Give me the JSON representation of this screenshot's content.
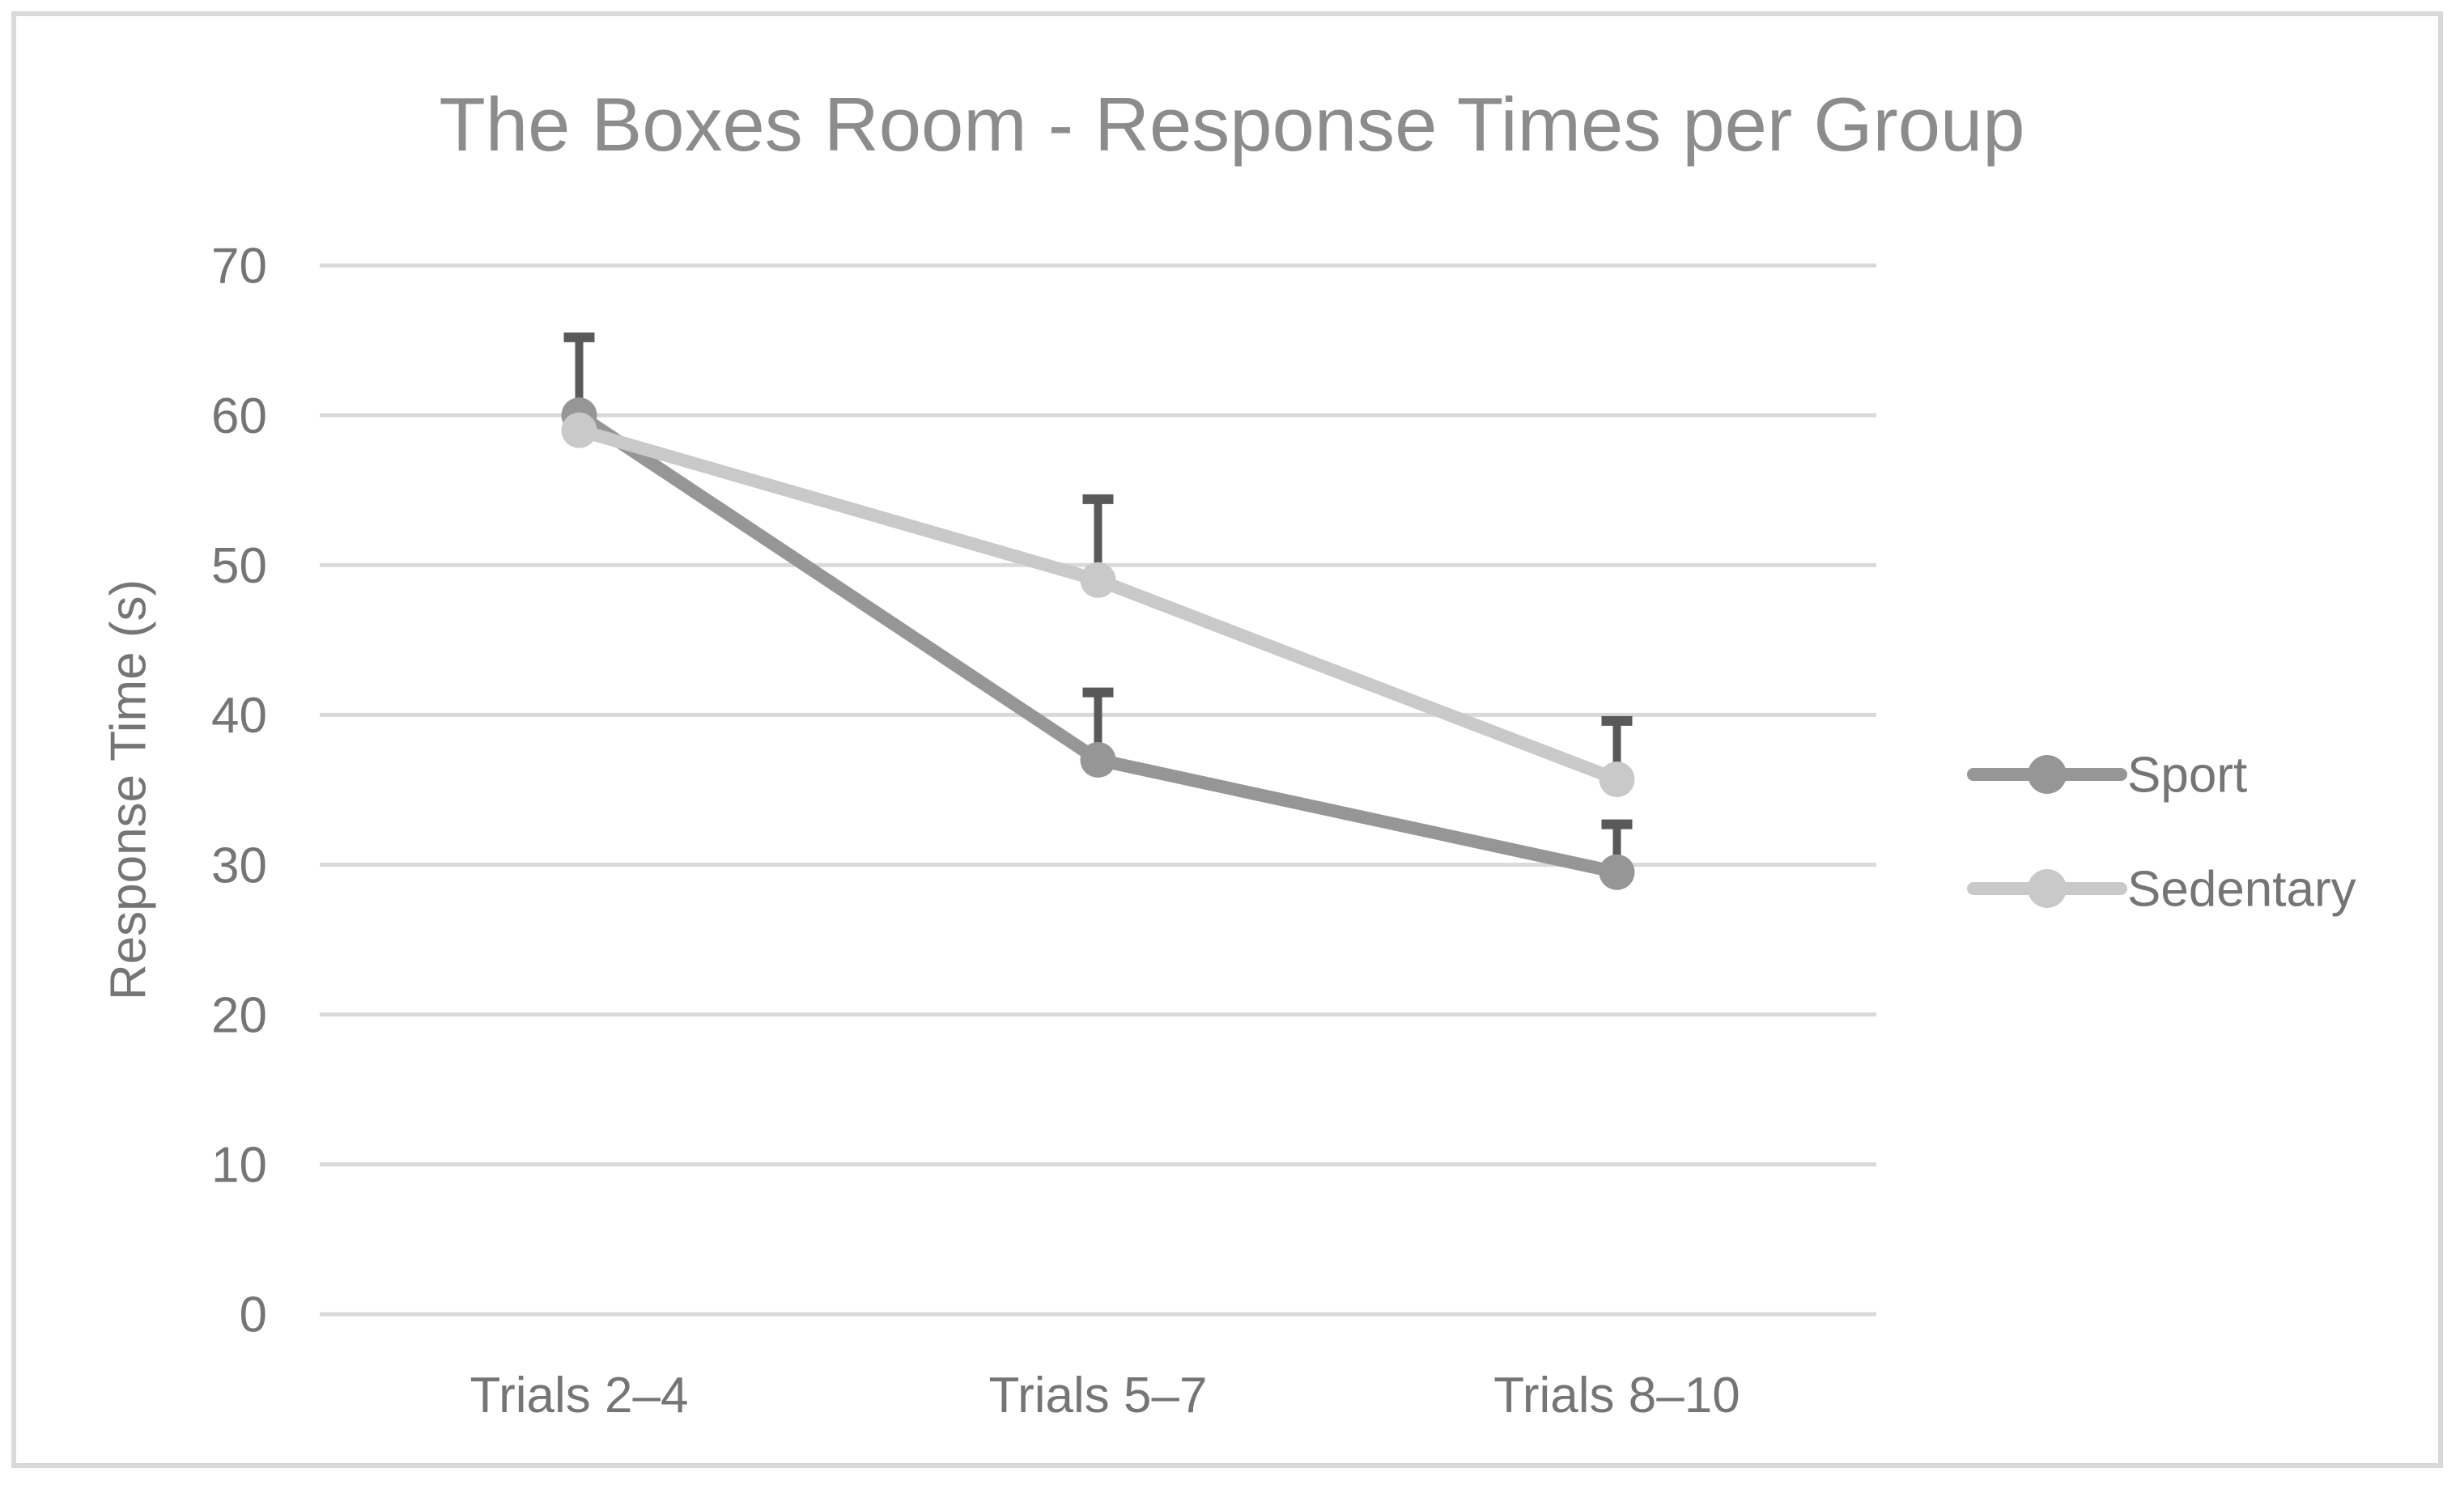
{
  "chart_data": {
    "type": "line",
    "title": "The Boxes Room - Response Times per Group",
    "xlabel": "",
    "ylabel": "Response Time (s)",
    "categories": [
      "Trials 2–4",
      "Trials 5–7",
      "Trials 8–10"
    ],
    "series": [
      {
        "name": "Sport",
        "color": "#969696",
        "values": [
          60,
          37,
          29.5
        ],
        "error_plus": [
          5.2,
          4.5,
          3.2
        ]
      },
      {
        "name": "Sedentary",
        "color": "#c9c9c9",
        "values": [
          59,
          49,
          35.7
        ],
        "error_plus": [
          null,
          5.4,
          3.9
        ]
      }
    ],
    "ylim": [
      0,
      70
    ],
    "yticks": [
      0,
      10,
      20,
      30,
      40,
      50,
      60,
      70
    ],
    "grid": true,
    "legend_position": "right",
    "marker": "circle",
    "error_bars": "plus-only",
    "colors": {
      "error_bar": "#595959",
      "gridline": "#d9d9d9",
      "axis_text": "#757575",
      "title_text": "#8c8c8c",
      "frame_border": "#d9d9d9",
      "background": "#ffffff"
    }
  }
}
